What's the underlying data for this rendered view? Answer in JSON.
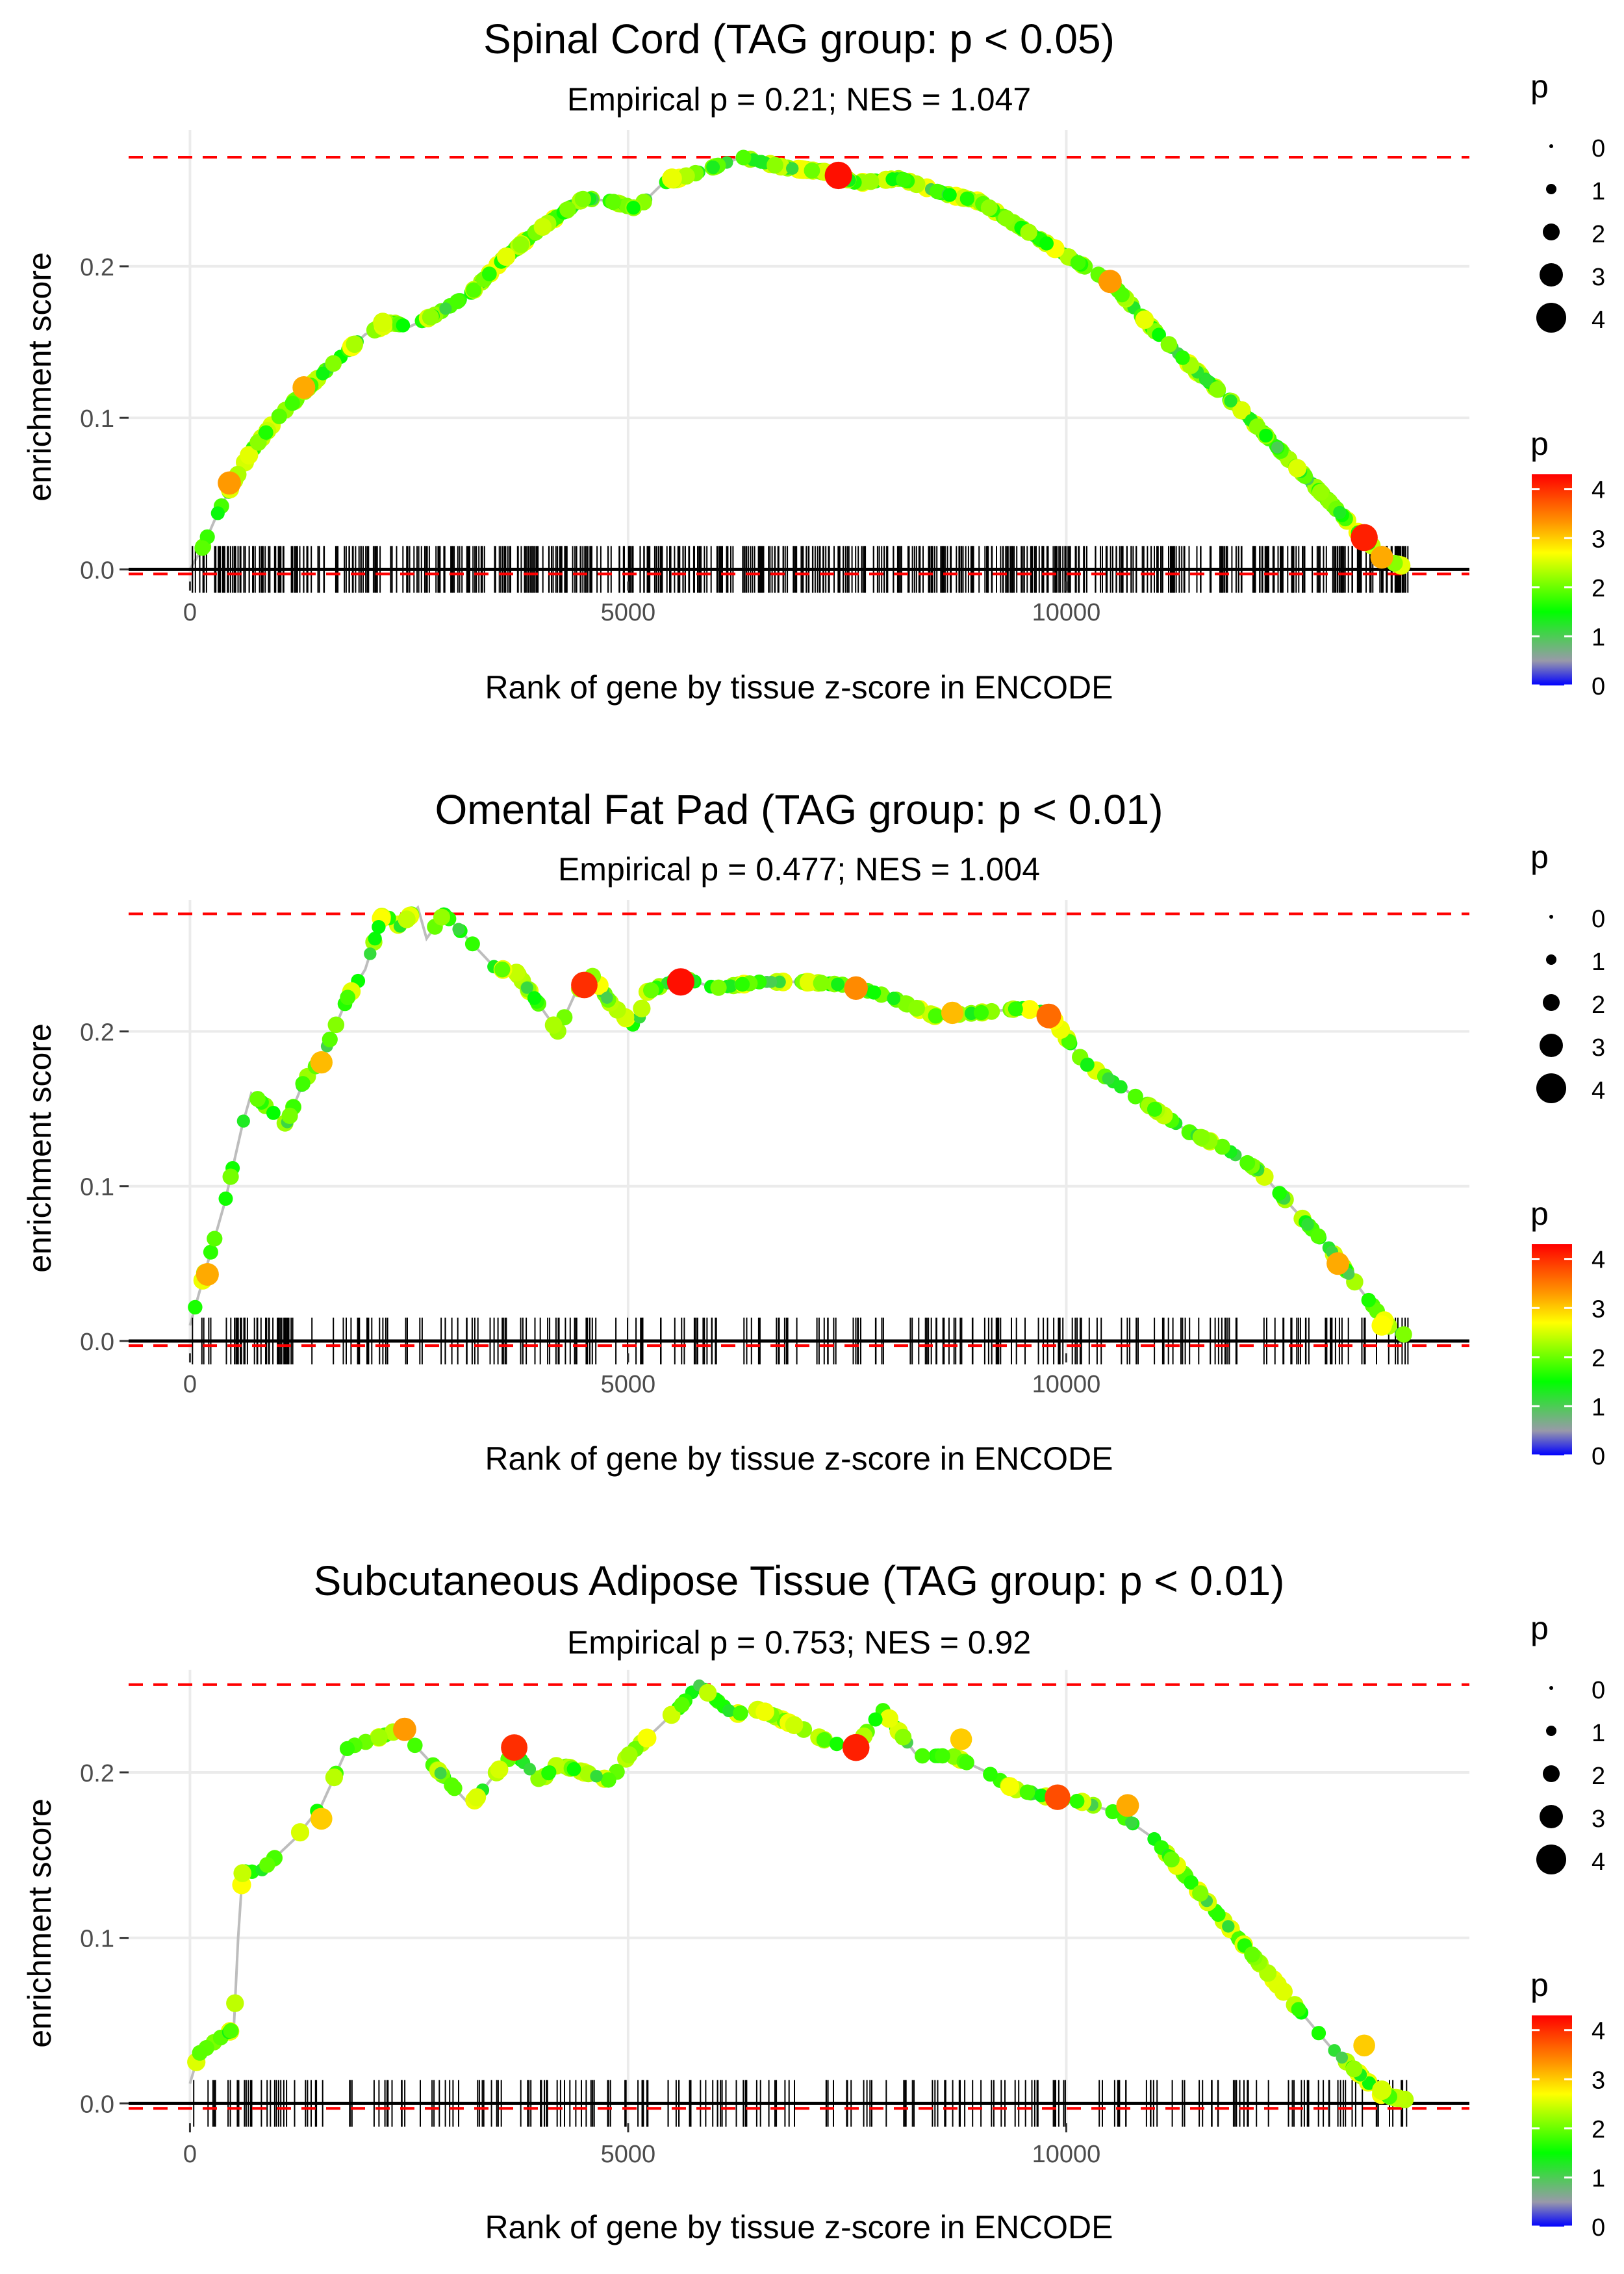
{
  "figure": {
    "shared": {
      "xlabel": "Rank of gene by tissue z-score in ENCODE",
      "ylabel": "enrichment score",
      "x_ticks": [
        0,
        5000,
        10000
      ],
      "x_tick_labels": [
        "0",
        "5000",
        "10000"
      ],
      "xlim": [
        -700,
        14600
      ],
      "colors": {
        "reference_line": "#ff0000",
        "zero_line": "#000000",
        "grid": "#ebebeb",
        "curve": "#bdbdbd",
        "rug": "#000000"
      },
      "legend_size": {
        "title": "p",
        "breaks": [
          "0",
          "1",
          "2",
          "3",
          "4"
        ]
      },
      "legend_color": {
        "title": "p",
        "breaks": [
          "0",
          "1",
          "2",
          "3",
          "4"
        ],
        "range": [
          0,
          4.3
        ],
        "gradient": [
          "#0000ff",
          "#9999aa",
          "#00ff00",
          "#ffff00",
          "#ff9900",
          "#ff0000"
        ]
      }
    }
  },
  "chart_data": [
    {
      "type": "scatter",
      "title": "Spinal Cord (TAG group: p < 0.05)",
      "subtitle": "Empirical p = 0.21; NES = 1.047",
      "xlabel": "Rank of gene by tissue z-score in ENCODE",
      "ylabel": "enrichment score",
      "ylim": [
        -0.008,
        0.29
      ],
      "y_ticks": [
        0.0,
        0.1,
        0.2
      ],
      "y_tick_labels": [
        "0.0",
        "0.1",
        "0.2"
      ],
      "max_es": 0.272,
      "min_es": -0.003,
      "curve": [
        [
          0,
          0
        ],
        [
          150,
          0.015
        ],
        [
          300,
          0.035
        ],
        [
          500,
          0.058
        ],
        [
          700,
          0.078
        ],
        [
          1000,
          0.1
        ],
        [
          1300,
          0.117
        ],
        [
          1600,
          0.134
        ],
        [
          2000,
          0.155
        ],
        [
          2300,
          0.163
        ],
        [
          2500,
          0.16
        ],
        [
          2800,
          0.168
        ],
        [
          3200,
          0.182
        ],
        [
          3600,
          0.206
        ],
        [
          4000,
          0.225
        ],
        [
          4500,
          0.245
        ],
        [
          4800,
          0.243
        ],
        [
          5100,
          0.238
        ],
        [
          5400,
          0.255
        ],
        [
          5800,
          0.262
        ],
        [
          6300,
          0.272
        ],
        [
          6800,
          0.265
        ],
        [
          7300,
          0.262
        ],
        [
          7600,
          0.255
        ],
        [
          8100,
          0.258
        ],
        [
          8600,
          0.248
        ],
        [
          9000,
          0.243
        ],
        [
          9500,
          0.225
        ],
        [
          10000,
          0.207
        ],
        [
          10500,
          0.19
        ],
        [
          11000,
          0.158
        ],
        [
          11500,
          0.13
        ],
        [
          12000,
          0.105
        ],
        [
          12500,
          0.075
        ],
        [
          13000,
          0.045
        ],
        [
          13400,
          0.02
        ],
        [
          13700,
          0.005
        ],
        [
          13950,
          0.0
        ]
      ],
      "highlights": [
        [
          450,
          0.057,
          3.3
        ],
        [
          1300,
          0.12,
          3.2
        ],
        [
          2200,
          0.163,
          2.5
        ],
        [
          5500,
          0.258,
          2.6
        ],
        [
          7400,
          0.26,
          4.2
        ],
        [
          10500,
          0.19,
          3.3
        ],
        [
          13400,
          0.021,
          4.1
        ],
        [
          13600,
          0.008,
          3.2
        ]
      ],
      "rug_n": 620,
      "rug_seed": 11
    },
    {
      "type": "scatter",
      "title": "Omental Fat Pad (TAG group: p < 0.01)",
      "subtitle": "Empirical p = 0.477; NES = 1.004",
      "xlabel": "Rank of gene by tissue z-score in ENCODE",
      "ylabel": "enrichment score",
      "ylim": [
        -0.008,
        0.285
      ],
      "y_ticks": [
        0.0,
        0.1,
        0.2
      ],
      "y_tick_labels": [
        "0.0",
        "0.1",
        "0.2"
      ],
      "max_es": 0.276,
      "min_es": -0.003,
      "curve": [
        [
          0,
          0.01
        ],
        [
          200,
          0.05
        ],
        [
          400,
          0.09
        ],
        [
          600,
          0.14
        ],
        [
          700,
          0.16
        ],
        [
          1100,
          0.14
        ],
        [
          1300,
          0.168
        ],
        [
          1500,
          0.182
        ],
        [
          1800,
          0.222
        ],
        [
          2000,
          0.24
        ],
        [
          2200,
          0.276
        ],
        [
          2400,
          0.268
        ],
        [
          2600,
          0.28
        ],
        [
          2700,
          0.26
        ],
        [
          2900,
          0.276
        ],
        [
          3500,
          0.24
        ],
        [
          3700,
          0.24
        ],
        [
          4200,
          0.2
        ],
        [
          4400,
          0.225
        ],
        [
          4600,
          0.236
        ],
        [
          4800,
          0.218
        ],
        [
          5100,
          0.202
        ],
        [
          5200,
          0.225
        ],
        [
          5600,
          0.235
        ],
        [
          6000,
          0.228
        ],
        [
          6500,
          0.232
        ],
        [
          7000,
          0.232
        ],
        [
          7500,
          0.23
        ],
        [
          8000,
          0.222
        ],
        [
          8500,
          0.21
        ],
        [
          9000,
          0.212
        ],
        [
          9500,
          0.215
        ],
        [
          9800,
          0.212
        ],
        [
          10200,
          0.18
        ],
        [
          10600,
          0.165
        ],
        [
          11000,
          0.15
        ],
        [
          11400,
          0.135
        ],
        [
          11800,
          0.125
        ],
        [
          12200,
          0.11
        ],
        [
          12600,
          0.085
        ],
        [
          13000,
          0.06
        ],
        [
          13400,
          0.03
        ],
        [
          13700,
          0.008
        ],
        [
          13900,
          0.003
        ]
      ],
      "highlights": [
        [
          200,
          0.043,
          3.2
        ],
        [
          1500,
          0.18,
          3.1
        ],
        [
          4500,
          0.23,
          4.0
        ],
        [
          5600,
          0.232,
          4.2
        ],
        [
          7600,
          0.228,
          3.4
        ],
        [
          8700,
          0.212,
          3.1
        ],
        [
          9800,
          0.21,
          3.6
        ],
        [
          13100,
          0.05,
          3.2
        ],
        [
          13600,
          0.01,
          2.7
        ]
      ],
      "rug_n": 260,
      "rug_seed": 23
    },
    {
      "type": "scatter",
      "title": "Subcutaneous Adipose Tissue (TAG group: p < 0.01)",
      "subtitle": "Empirical p = 0.753; NES = 0.92",
      "xlabel": "Rank of gene by tissue z-score in ENCODE",
      "ylabel": "enrichment score",
      "ylim": [
        -0.012,
        0.262
      ],
      "y_ticks": [
        0.0,
        0.1,
        0.2
      ],
      "y_tick_labels": [
        "0.0",
        "0.1",
        "0.2"
      ],
      "max_es": 0.253,
      "min_es": -0.003,
      "curve": [
        [
          0,
          0.012
        ],
        [
          100,
          0.03
        ],
        [
          300,
          0.038
        ],
        [
          500,
          0.045
        ],
        [
          550,
          0.1
        ],
        [
          600,
          0.14
        ],
        [
          800,
          0.14
        ],
        [
          1000,
          0.15
        ],
        [
          1200,
          0.16
        ],
        [
          1500,
          0.18
        ],
        [
          1800,
          0.215
        ],
        [
          2100,
          0.22
        ],
        [
          2400,
          0.226
        ],
        [
          3200,
          0.18
        ],
        [
          3500,
          0.2
        ],
        [
          3700,
          0.212
        ],
        [
          4000,
          0.195
        ],
        [
          4200,
          0.205
        ],
        [
          4500,
          0.2
        ],
        [
          4800,
          0.195
        ],
        [
          5000,
          0.21
        ],
        [
          5300,
          0.225
        ],
        [
          5600,
          0.24
        ],
        [
          5800,
          0.253
        ],
        [
          6200,
          0.235
        ],
        [
          6500,
          0.238
        ],
        [
          7000,
          0.226
        ],
        [
          7300,
          0.218
        ],
        [
          7600,
          0.215
        ],
        [
          7900,
          0.238
        ],
        [
          8300,
          0.21
        ],
        [
          8700,
          0.21
        ],
        [
          9100,
          0.2
        ],
        [
          9400,
          0.19
        ],
        [
          9800,
          0.185
        ],
        [
          10200,
          0.182
        ],
        [
          10600,
          0.175
        ],
        [
          11000,
          0.16
        ],
        [
          11400,
          0.135
        ],
        [
          11800,
          0.11
        ],
        [
          12200,
          0.085
        ],
        [
          12600,
          0.06
        ],
        [
          13000,
          0.035
        ],
        [
          13300,
          0.02
        ],
        [
          13600,
          0.005
        ],
        [
          13900,
          0.002
        ]
      ],
      "highlights": [
        [
          1500,
          0.172,
          3.0
        ],
        [
          2450,
          0.226,
          3.3
        ],
        [
          3700,
          0.215,
          4.0
        ],
        [
          7600,
          0.215,
          4.1
        ],
        [
          8800,
          0.22,
          3.0
        ],
        [
          9900,
          0.185,
          3.8
        ],
        [
          10700,
          0.18,
          3.2
        ],
        [
          13400,
          0.035,
          3.0
        ],
        [
          13600,
          0.008,
          2.5
        ]
      ],
      "rug_n": 230,
      "rug_seed": 37
    }
  ]
}
